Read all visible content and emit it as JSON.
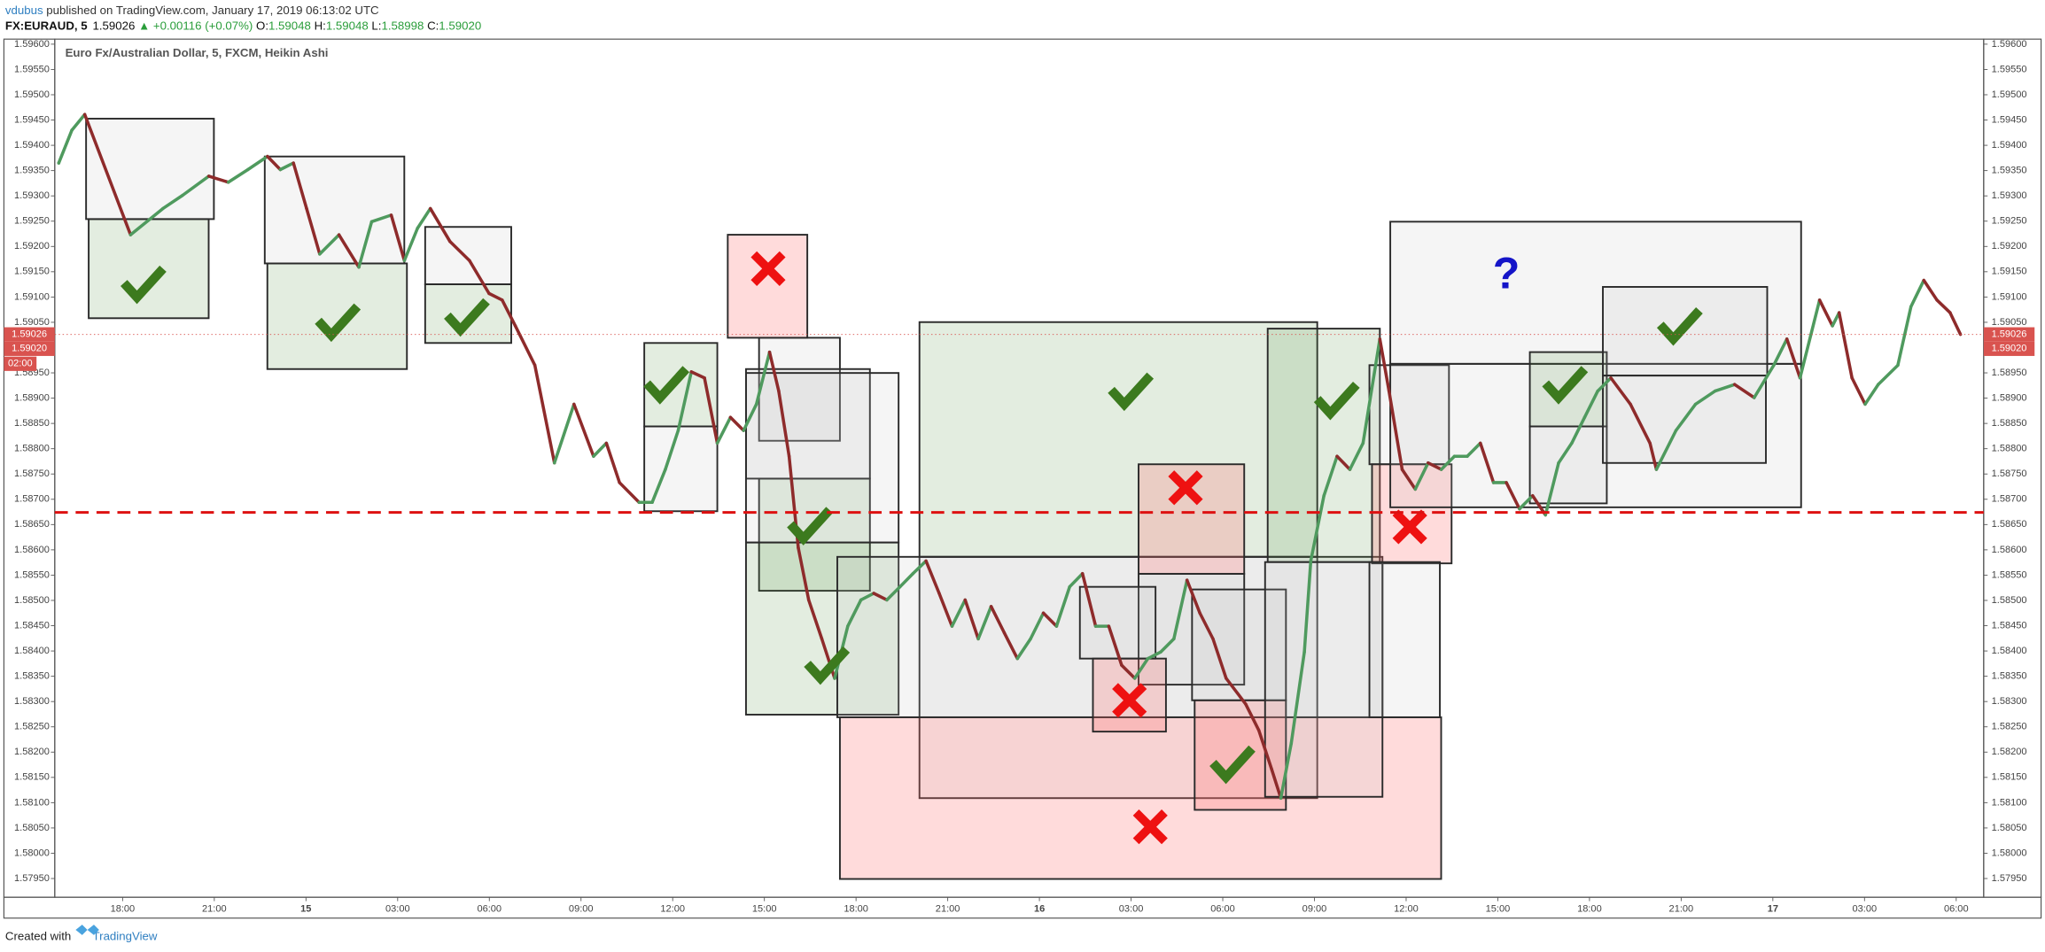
{
  "header": {
    "author": "vdubus",
    "published": "published on TradingView.com, January 17, 2019 06:13:02 UTC",
    "symbol": "FX:EURAUD, 5",
    "price": "1.59026",
    "change": "▲ +0.00116 (+0.07%)",
    "open_label": "O:",
    "open": "1.59048",
    "high_label": "H:",
    "high": "1.59048",
    "low_label": "L:",
    "low": "1.58998",
    "close_label": "C:",
    "close": "1.59020"
  },
  "footer": {
    "created": "Created with",
    "brand": "TradingView"
  },
  "chart_data": {
    "type": "line",
    "title": "Euro Fx/Australian Dollar, 5, FXCM, Heikin Ashi",
    "annotation": "?",
    "up_color": "#4f9a5e",
    "down_color": "#8e2b2b",
    "grid": false,
    "xlim": [
      15.78,
      78.9
    ],
    "ylim": [
      1.57913,
      1.5961
    ],
    "xticks": [
      {
        "value": 18,
        "label": "18:00"
      },
      {
        "value": 21,
        "label": "21:00"
      },
      {
        "value": 24,
        "label": "15"
      },
      {
        "value": 27,
        "label": "03:00"
      },
      {
        "value": 30,
        "label": "06:00"
      },
      {
        "value": 33,
        "label": "09:00"
      },
      {
        "value": 36,
        "label": "12:00"
      },
      {
        "value": 39,
        "label": "15:00"
      },
      {
        "value": 42,
        "label": "18:00"
      },
      {
        "value": 45,
        "label": "21:00"
      },
      {
        "value": 48,
        "label": "16"
      },
      {
        "value": 51,
        "label": "03:00"
      },
      {
        "value": 54,
        "label": "06:00"
      },
      {
        "value": 57,
        "label": "09:00"
      },
      {
        "value": 60,
        "label": "12:00"
      },
      {
        "value": 63,
        "label": "15:00"
      },
      {
        "value": 66,
        "label": "18:00"
      },
      {
        "value": 69,
        "label": "21:00"
      },
      {
        "value": 72,
        "label": "17"
      },
      {
        "value": 75,
        "label": "03:00"
      },
      {
        "value": 78,
        "label": "06:00"
      }
    ],
    "yticks": [
      {
        "value": 1.596,
        "label": "1.59600"
      },
      {
        "value": 1.5955,
        "label": "1.59550"
      },
      {
        "value": 1.595,
        "label": "1.59500"
      },
      {
        "value": 1.5945,
        "label": "1.59450"
      },
      {
        "value": 1.594,
        "label": "1.59400"
      },
      {
        "value": 1.5935,
        "label": "1.59350"
      },
      {
        "value": 1.593,
        "label": "1.59300"
      },
      {
        "value": 1.5925,
        "label": "1.59250"
      },
      {
        "value": 1.592,
        "label": "1.59200"
      },
      {
        "value": 1.5915,
        "label": "1.59150"
      },
      {
        "value": 1.591,
        "label": "1.59100"
      },
      {
        "value": 1.5905,
        "label": "1.59050"
      },
      {
        "value": 1.59,
        "label": "1.59000"
      },
      {
        "value": 1.5895,
        "label": "1.58950"
      },
      {
        "value": 1.589,
        "label": "1.58900"
      },
      {
        "value": 1.5885,
        "label": "1.58850"
      },
      {
        "value": 1.588,
        "label": "1.58800"
      },
      {
        "value": 1.5875,
        "label": "1.58750"
      },
      {
        "value": 1.587,
        "label": "1.58700"
      },
      {
        "value": 1.5865,
        "label": "1.58650"
      },
      {
        "value": 1.586,
        "label": "1.58600"
      },
      {
        "value": 1.5855,
        "label": "1.58550"
      },
      {
        "value": 1.585,
        "label": "1.58500"
      },
      {
        "value": 1.5845,
        "label": "1.58450"
      },
      {
        "value": 1.584,
        "label": "1.58400"
      },
      {
        "value": 1.5835,
        "label": "1.58350"
      },
      {
        "value": 1.583,
        "label": "1.58300"
      },
      {
        "value": 1.5825,
        "label": "1.58250"
      },
      {
        "value": 1.582,
        "label": "1.58200"
      },
      {
        "value": 1.5815,
        "label": "1.58150"
      },
      {
        "value": 1.581,
        "label": "1.58100"
      },
      {
        "value": 1.5805,
        "label": "1.58050"
      },
      {
        "value": 1.58,
        "label": "1.58000"
      },
      {
        "value": 1.5795,
        "label": "1.57950"
      }
    ],
    "last_price": {
      "value": 1.59026,
      "label": "1.59026"
    },
    "close_price": {
      "value": 1.5902,
      "label": "1.59020"
    },
    "countdown": "02:00",
    "horizontal_line": 1.58674,
    "x": [
      15.91,
      16.34,
      16.76,
      18.26,
      19.32,
      19.96,
      20.82,
      21.46,
      22.1,
      22.74,
      23.16,
      23.59,
      24.02,
      24.45,
      25.08,
      25.73,
      26.15,
      26.79,
      27.22,
      27.65,
      28.07,
      28.71,
      29.35,
      29.99,
      30.42,
      30.85,
      31.49,
      32.13,
      32.77,
      33.41,
      33.83,
      34.26,
      34.9,
      35.33,
      35.76,
      36.18,
      36.61,
      37.04,
      37.46,
      37.89,
      38.32,
      38.74,
      39.17,
      39.47,
      39.81,
      40.11,
      40.45,
      40.88,
      41.3,
      41.73,
      42.16,
      42.58,
      43.01,
      43.44,
      43.86,
      44.29,
      44.72,
      45.14,
      45.57,
      46.0,
      46.42,
      46.85,
      47.28,
      47.71,
      48.13,
      48.56,
      48.99,
      49.41,
      49.84,
      50.27,
      50.69,
      51.12,
      51.55,
      51.97,
      52.4,
      52.83,
      53.25,
      53.68,
      54.11,
      54.75,
      55.18,
      55.6,
      55.9,
      56.24,
      56.67,
      56.88,
      57.31,
      57.74,
      58.16,
      58.59,
      59.14,
      59.44,
      59.87,
      60.3,
      60.72,
      61.15,
      61.58,
      62.0,
      62.43,
      62.86,
      63.28,
      63.71,
      64.14,
      64.56,
      64.99,
      65.42,
      65.84,
      66.27,
      66.7,
      67.34,
      67.98,
      68.19,
      68.83,
      69.47,
      70.11,
      70.75,
      71.39,
      72.03,
      72.46,
      72.89,
      73.53,
      73.95,
      74.17,
      74.59,
      75.02,
      75.45,
      76.09,
      76.52,
      76.94,
      77.37,
      77.8,
      78.14
    ],
    "values": [
      1.59365,
      1.5943,
      1.59461,
      1.59223,
      1.59275,
      1.59301,
      1.59339,
      1.59327,
      1.59352,
      1.59378,
      1.59352,
      1.59365,
      1.59275,
      1.59185,
      1.59223,
      1.59159,
      1.59249,
      1.59262,
      1.59172,
      1.59236,
      1.59275,
      1.5921,
      1.59172,
      1.59107,
      1.59094,
      1.59043,
      1.58965,
      1.58772,
      1.58888,
      1.58785,
      1.58811,
      1.58733,
      1.58694,
      1.58694,
      1.58759,
      1.58836,
      1.58952,
      1.5894,
      1.58811,
      1.58862,
      1.58836,
      1.58888,
      1.58991,
      1.58914,
      1.58785,
      1.58604,
      1.58501,
      1.58424,
      1.58346,
      1.58449,
      1.58501,
      1.58514,
      1.58501,
      1.58527,
      1.58553,
      1.58578,
      1.58514,
      1.58449,
      1.58501,
      1.58424,
      1.58488,
      1.58436,
      1.58385,
      1.58424,
      1.58475,
      1.58449,
      1.58527,
      1.58553,
      1.58449,
      1.58449,
      1.58372,
      1.58346,
      1.58385,
      1.58398,
      1.58424,
      1.5854,
      1.58475,
      1.58424,
      1.58346,
      1.58295,
      1.58243,
      1.58166,
      1.58109,
      1.58217,
      1.58398,
      1.58578,
      1.58707,
      1.58785,
      1.58759,
      1.58811,
      1.59017,
      1.58914,
      1.58759,
      1.5872,
      1.58772,
      1.58759,
      1.58785,
      1.58785,
      1.58811,
      1.58733,
      1.58733,
      1.58681,
      1.58707,
      1.58669,
      1.58772,
      1.58811,
      1.58862,
      1.58914,
      1.5894,
      1.58888,
      1.58811,
      1.58759,
      1.58836,
      1.58888,
      1.58914,
      1.58927,
      1.58901,
      1.58965,
      1.59017,
      1.5894,
      1.59094,
      1.59043,
      1.59069,
      1.5894,
      1.58888,
      1.58927,
      1.58965,
      1.59081,
      1.59133,
      1.59094,
      1.59069,
      1.59026
    ]
  }
}
